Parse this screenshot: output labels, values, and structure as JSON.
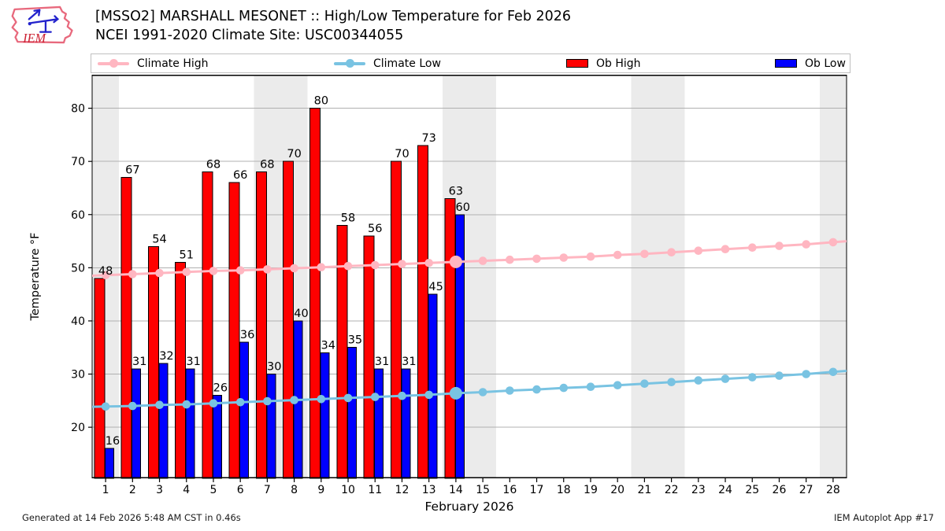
{
  "header": {
    "title": "[MSSO2] MARSHALL MESONET :: High/Low Temperature for Feb 2026",
    "subtitle": "NCEI 1991-2020 Climate Site: USC00344055",
    "logo_text": "IEM"
  },
  "legend": [
    {
      "label": "Climate High",
      "type": "line",
      "color": "#ffb6c1"
    },
    {
      "label": "Climate Low",
      "type": "line",
      "color": "#79c3e2"
    },
    {
      "label": "Ob High",
      "type": "box",
      "color": "#ff0000"
    },
    {
      "label": "Ob Low",
      "type": "box",
      "color": "#0000ff"
    }
  ],
  "footer": {
    "left": "Generated at 14 Feb 2026 5:48 AM CST in 0.46s",
    "right": "IEM Autoplot App #17"
  },
  "chart_data": {
    "type": "bar",
    "title": "[MSSO2] MARSHALL MESONET :: High/Low Temperature for Feb 2026",
    "subtitle": "NCEI 1991-2020 Climate Site: USC00344055",
    "xlabel": "February 2026",
    "ylabel": "Temperature °F",
    "x": [
      1,
      2,
      3,
      4,
      5,
      6,
      7,
      8,
      9,
      10,
      11,
      12,
      13,
      14,
      15,
      16,
      17,
      18,
      19,
      20,
      21,
      22,
      23,
      24,
      25,
      26,
      27,
      28
    ],
    "series": [
      {
        "name": "Ob High",
        "type": "bar",
        "color": "#ff0000",
        "values": [
          48,
          67,
          54,
          51,
          68,
          66,
          68,
          70,
          80,
          58,
          56,
          70,
          73,
          63
        ]
      },
      {
        "name": "Ob Low",
        "type": "bar",
        "color": "#0000ff",
        "values": [
          16,
          31,
          32,
          31,
          26,
          36,
          30,
          40,
          34,
          35,
          31,
          31,
          45,
          60
        ]
      },
      {
        "name": "Climate High",
        "type": "line",
        "color": "#ffb6c1",
        "values": [
          48.6,
          48.8,
          49.0,
          49.2,
          49.4,
          49.5,
          49.7,
          49.9,
          50.1,
          50.3,
          50.5,
          50.7,
          50.9,
          51.1,
          51.3,
          51.5,
          51.7,
          51.9,
          52.1,
          52.4,
          52.6,
          52.9,
          53.2,
          53.5,
          53.8,
          54.1,
          54.4,
          54.8
        ]
      },
      {
        "name": "Climate Low",
        "type": "line",
        "color": "#79c3e2",
        "values": [
          23.9,
          24.0,
          24.2,
          24.3,
          24.5,
          24.7,
          24.9,
          25.1,
          25.3,
          25.5,
          25.7,
          25.9,
          26.1,
          26.4,
          26.6,
          26.9,
          27.1,
          27.4,
          27.6,
          27.9,
          28.2,
          28.5,
          28.8,
          29.1,
          29.4,
          29.7,
          30.0,
          30.4
        ]
      }
    ],
    "ylim": [
      10.4,
      86.3
    ],
    "yticks": [
      20,
      30,
      40,
      50,
      60,
      70,
      80
    ],
    "weekend_shading_days": [
      1,
      7,
      8,
      14,
      15,
      21,
      22,
      28
    ],
    "highlight_day": 14,
    "grid": "horizontal",
    "legend_position": "top",
    "colors": {
      "ob_high": "#ff0000",
      "ob_low": "#0000ff",
      "climate_high": "#ffb6c1",
      "climate_low": "#79c3e2",
      "weekend_band": "#ebebeb",
      "grid": "#b0b0b0",
      "frame": "#000000"
    }
  }
}
